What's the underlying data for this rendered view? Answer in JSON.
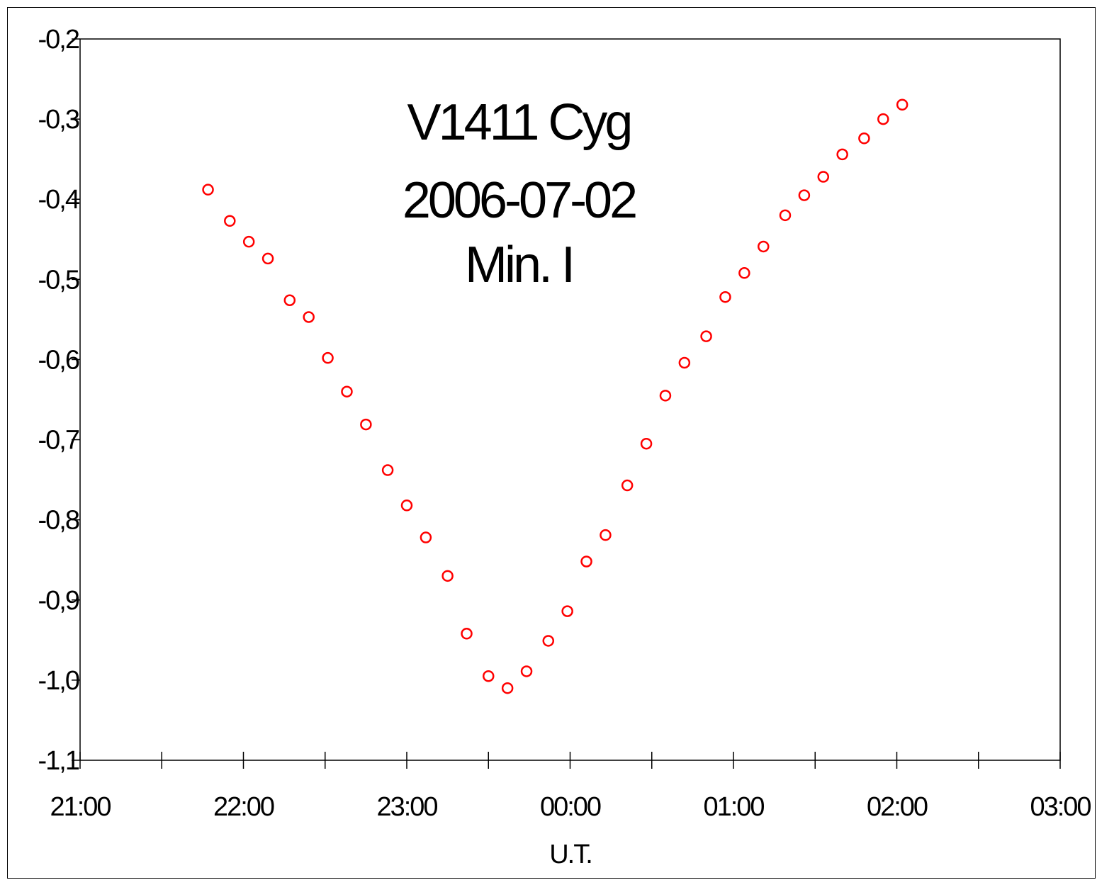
{
  "chart_data": {
    "type": "scatter",
    "title_lines": [
      "V1411 Cyg",
      "2006-07-02",
      "Min. I"
    ],
    "xlabel": "U.T.",
    "ylabel": "",
    "x_tick_labels": [
      "21:00",
      "22:00",
      "23:00",
      "00:00",
      "01:00",
      "02:00",
      "03:00"
    ],
    "y_tick_labels": [
      "-0,2",
      "-0,3",
      "-0,4",
      "-0,5",
      "-0,6",
      "-0,7",
      "-0,8",
      "-0,9",
      "-1,0",
      "-1,1"
    ],
    "xlim": [
      "21:00",
      "03:00"
    ],
    "ylim": [
      -1.1,
      -0.2
    ],
    "grid": false,
    "legend": "none",
    "marker": "open-circle",
    "marker_color": "#ff0000",
    "points": [
      {
        "x": "21:47",
        "y": -0.388
      },
      {
        "x": "21:55",
        "y": -0.427
      },
      {
        "x": "22:02",
        "y": -0.453
      },
      {
        "x": "22:09",
        "y": -0.474
      },
      {
        "x": "22:17",
        "y": -0.526
      },
      {
        "x": "22:24",
        "y": -0.547
      },
      {
        "x": "22:31",
        "y": -0.598
      },
      {
        "x": "22:38",
        "y": -0.64
      },
      {
        "x": "22:45",
        "y": -0.681
      },
      {
        "x": "22:53",
        "y": -0.738
      },
      {
        "x": "23:00",
        "y": -0.782
      },
      {
        "x": "23:07",
        "y": -0.822
      },
      {
        "x": "23:15",
        "y": -0.87
      },
      {
        "x": "23:22",
        "y": -0.942
      },
      {
        "x": "23:30",
        "y": -0.995
      },
      {
        "x": "23:37",
        "y": -1.01
      },
      {
        "x": "23:44",
        "y": -0.989
      },
      {
        "x": "23:52",
        "y": -0.951
      },
      {
        "x": "23:59",
        "y": -0.914
      },
      {
        "x": "00:06",
        "y": -0.852
      },
      {
        "x": "00:13",
        "y": -0.819
      },
      {
        "x": "00:21",
        "y": -0.757
      },
      {
        "x": "00:28",
        "y": -0.705
      },
      {
        "x": "00:35",
        "y": -0.645
      },
      {
        "x": "00:42",
        "y": -0.604
      },
      {
        "x": "00:50",
        "y": -0.571
      },
      {
        "x": "00:57",
        "y": -0.522
      },
      {
        "x": "01:04",
        "y": -0.492
      },
      {
        "x": "01:11",
        "y": -0.459
      },
      {
        "x": "01:19",
        "y": -0.42
      },
      {
        "x": "01:26",
        "y": -0.395
      },
      {
        "x": "01:33",
        "y": -0.372
      },
      {
        "x": "01:40",
        "y": -0.344
      },
      {
        "x": "01:48",
        "y": -0.324
      },
      {
        "x": "01:55",
        "y": -0.3
      },
      {
        "x": "02:02",
        "y": -0.282
      }
    ]
  }
}
